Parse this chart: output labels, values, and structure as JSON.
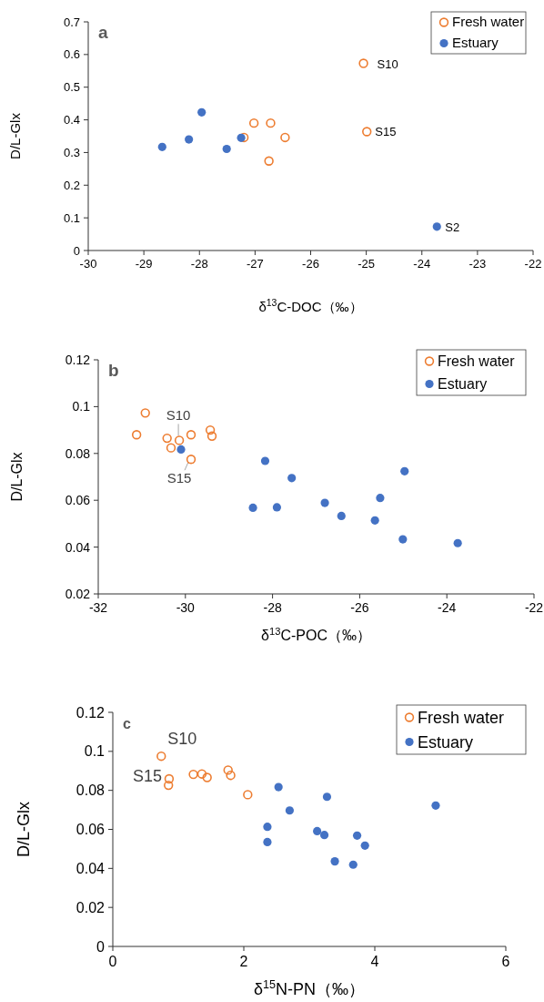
{
  "chart_data": [
    {
      "type": "scatter",
      "title": "a",
      "xlabel": "δ$^{13}$C-DOC（‰）",
      "ylabel": "D/L-Glx",
      "xlim": [
        -30,
        -22
      ],
      "xticks": [
        -30,
        -29,
        -28,
        -27,
        -26,
        -25,
        -24,
        -23,
        -22
      ],
      "ylim": [
        0,
        0.7
      ],
      "yticks": [
        0,
        0.1,
        0.2,
        0.3,
        0.4,
        0.5,
        0.6,
        0.7
      ],
      "legend": "top right",
      "marker": "circle",
      "grid": false,
      "series": [
        {
          "name": "Fresh water",
          "color": "#ed7d31",
          "x": [
            -25.05,
            -24.99,
            -27.02,
            -26.72,
            -27.2,
            -26.46,
            -26.75
          ],
          "values": [
            0.573,
            0.364,
            0.39,
            0.39,
            0.346,
            0.346,
            0.274
          ]
        },
        {
          "name": "Estuary",
          "color": "#4472c4",
          "x": [
            -28.67,
            -28.19,
            -27.96,
            -27.51,
            -27.25,
            -23.73
          ],
          "values": [
            0.317,
            0.34,
            0.423,
            0.311,
            0.345,
            0.073
          ]
        }
      ],
      "annotations": [
        {
          "text": "S10",
          "x": -25.05,
          "y": 0.573
        },
        {
          "text": "S15",
          "x": -24.99,
          "y": 0.364
        },
        {
          "text": "S2",
          "x": -23.73,
          "y": 0.073
        }
      ]
    },
    {
      "type": "scatter",
      "title": "b",
      "xlabel": "δ$^{13}$C-POC（‰）",
      "ylabel": "D/L-Glx",
      "xlim": [
        -32,
        -22
      ],
      "xticks": [
        -32,
        -30,
        -28,
        -26,
        -24,
        -22
      ],
      "ylim": [
        0.02,
        0.12
      ],
      "yticks": [
        0.02,
        0.04,
        0.06,
        0.08,
        0.1,
        0.12
      ],
      "legend": "top right",
      "marker": "circle",
      "grid": false,
      "series": [
        {
          "name": "Fresh water",
          "color": "#ed7d31",
          "x": [
            -31.12,
            -30.92,
            -30.42,
            -30.33,
            -30.14,
            -29.87,
            -29.87,
            -29.43,
            -29.39
          ],
          "values": [
            0.088,
            0.0973,
            0.0865,
            0.0824,
            0.0856,
            0.088,
            0.0775,
            0.09,
            0.0874
          ]
        },
        {
          "name": "Estuary",
          "color": "#4472c4",
          "x": [
            -30.1,
            -28.17,
            -27.56,
            -28.45,
            -27.9,
            -26.8,
            -26.42,
            -25.65,
            -25.53,
            -24.97,
            -25.01,
            -23.75
          ],
          "values": [
            0.0817,
            0.0768,
            0.0695,
            0.0568,
            0.057,
            0.0589,
            0.0533,
            0.0514,
            0.061,
            0.0724,
            0.0433,
            0.0417
          ]
        }
      ],
      "annotations": [
        {
          "text": "S10",
          "x": -30.14,
          "y": 0.0856
        },
        {
          "text": "S15",
          "x": -29.87,
          "y": 0.0775
        }
      ]
    },
    {
      "type": "scatter",
      "title": "c",
      "xlabel": "δ$^{15}$N-PN（‰）",
      "ylabel": "D/L-Glx",
      "xlim": [
        0,
        6
      ],
      "xticks": [
        0,
        2,
        4,
        6
      ],
      "ylim": [
        0,
        0.12
      ],
      "yticks": [
        0,
        0.02,
        0.04,
        0.06,
        0.08,
        0.1,
        0.12
      ],
      "legend": "top right",
      "marker": "circle",
      "grid": false,
      "series": [
        {
          "name": "Fresh water",
          "color": "#ed7d31",
          "x": [
            0.74,
            0.86,
            0.85,
            1.23,
            1.36,
            1.44,
            1.76,
            1.8,
            2.06
          ],
          "values": [
            0.0975,
            0.0859,
            0.0826,
            0.0882,
            0.0884,
            0.0866,
            0.0904,
            0.0877,
            0.0778
          ]
        },
        {
          "name": "Estuary",
          "color": "#4472c4",
          "x": [
            2.53,
            2.36,
            2.36,
            2.7,
            3.27,
            3.12,
            3.23,
            3.73,
            3.85,
            3.39,
            3.67,
            4.93
          ],
          "values": [
            0.0817,
            0.0613,
            0.0535,
            0.0697,
            0.0767,
            0.0591,
            0.0571,
            0.0568,
            0.0517,
            0.0436,
            0.0419,
            0.0722
          ]
        }
      ],
      "annotations": [
        {
          "text": "S10",
          "x": 0.74,
          "y": 0.0975
        },
        {
          "text": "S15",
          "x": 0.86,
          "y": 0.0859
        }
      ]
    }
  ]
}
